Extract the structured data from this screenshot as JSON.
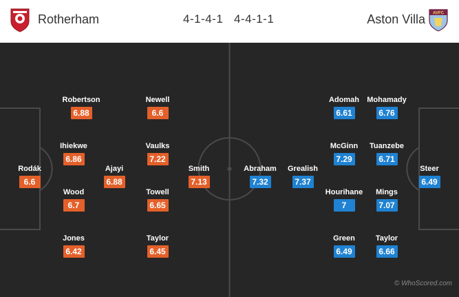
{
  "header": {
    "home_team": "Rotherham",
    "away_team": "Aston Villa",
    "home_formation": "4-1-4-1",
    "away_formation": "4-4-1-1",
    "home_badge_icon": "rotherham-crest-icon",
    "away_badge_icon": "aston-villa-crest-icon"
  },
  "colors": {
    "home_rating": "#e4602a",
    "away_rating": "#1f82d2",
    "pitch": "#262626",
    "lines": "#4a4a4a"
  },
  "home_players": [
    {
      "name": "Rodák",
      "rating": "6.6"
    },
    {
      "name": "Robertson",
      "rating": "6.88"
    },
    {
      "name": "Ihiekwe",
      "rating": "6.86"
    },
    {
      "name": "Wood",
      "rating": "6.7"
    },
    {
      "name": "Jones",
      "rating": "6.42"
    },
    {
      "name": "Ajayi",
      "rating": "6.88"
    },
    {
      "name": "Newell",
      "rating": "6.6"
    },
    {
      "name": "Vaulks",
      "rating": "7.22"
    },
    {
      "name": "Towell",
      "rating": "6.65"
    },
    {
      "name": "Taylor",
      "rating": "6.45"
    },
    {
      "name": "Smith",
      "rating": "7.13"
    }
  ],
  "away_players": [
    {
      "name": "Abraham",
      "rating": "7.32"
    },
    {
      "name": "Grealish",
      "rating": "7.37"
    },
    {
      "name": "Adomah",
      "rating": "6.61"
    },
    {
      "name": "McGinn",
      "rating": "7.29"
    },
    {
      "name": "Hourihane",
      "rating": "7"
    },
    {
      "name": "Green",
      "rating": "6.49"
    },
    {
      "name": "Mohamady",
      "rating": "6.76"
    },
    {
      "name": "Tuanzebe",
      "rating": "6.71"
    },
    {
      "name": "Mings",
      "rating": "7.07"
    },
    {
      "name": "Taylor",
      "rating": "6.66"
    },
    {
      "name": "Steer",
      "rating": "6.49"
    }
  ],
  "credit": "© WhoScored.com"
}
